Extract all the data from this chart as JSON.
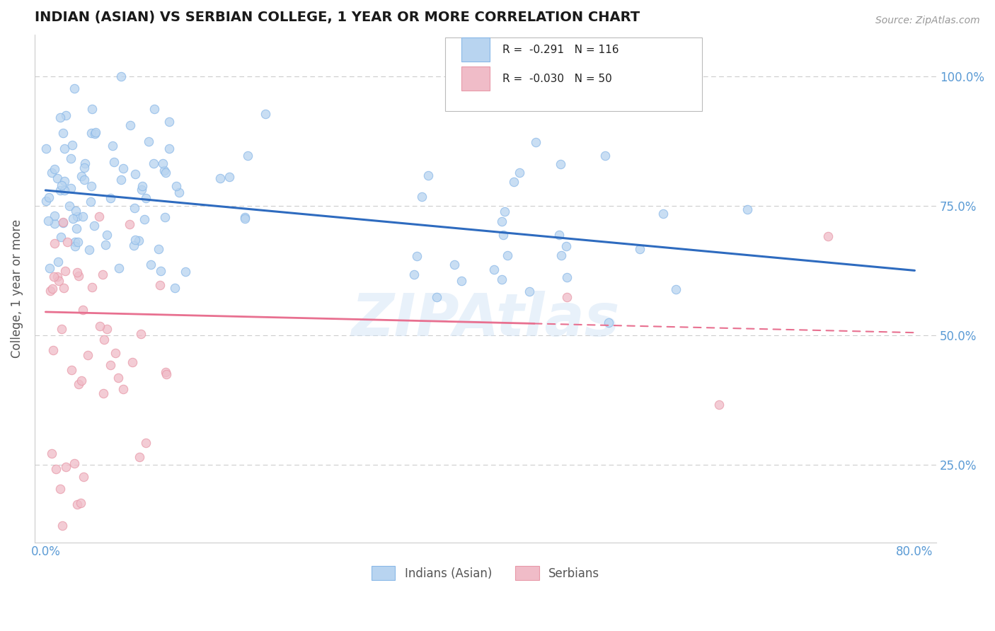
{
  "title": "INDIAN (ASIAN) VS SERBIAN COLLEGE, 1 YEAR OR MORE CORRELATION CHART",
  "source_text": "Source: ZipAtlas.com",
  "ylabel": "College, 1 year or more",
  "xlim": [
    -0.01,
    0.82
  ],
  "ylim": [
    0.1,
    1.08
  ],
  "xtick_positions": [
    0.0,
    0.1,
    0.2,
    0.3,
    0.4,
    0.5,
    0.6,
    0.7,
    0.8
  ],
  "xticklabels": [
    "0.0%",
    "",
    "",
    "",
    "",
    "",
    "",
    "",
    "80.0%"
  ],
  "ytick_positions": [
    0.25,
    0.5,
    0.75,
    1.0
  ],
  "yticklabels": [
    "25.0%",
    "50.0%",
    "75.0%",
    "100.0%"
  ],
  "blue_edge": "#89b8e8",
  "blue_face": "#b8d4f0",
  "pink_edge": "#e898a8",
  "pink_face": "#f0bcc8",
  "legend_blue_r": "R =  -0.291",
  "legend_blue_n": "N = 116",
  "legend_pink_r": "R =  -0.030",
  "legend_pink_n": "N = 50",
  "legend_label_blue": "Indians (Asian)",
  "legend_label_pink": "Serbians",
  "watermark": "ZIPAtlas",
  "blue_r": -0.291,
  "blue_n": 116,
  "pink_r": -0.03,
  "pink_n": 50,
  "title_color": "#1a1a1a",
  "axis_label_color": "#555555",
  "tick_color": "#5b9bd5",
  "grid_color": "#cccccc",
  "trend_blue_color": "#2e6bbf",
  "trend_pink_color": "#e87090",
  "scatter_alpha": 0.75,
  "scatter_size": 80,
  "blue_trend_start_y": 0.78,
  "blue_trend_end_y": 0.625,
  "pink_trend_start_y": 0.545,
  "pink_trend_end_y": 0.505
}
